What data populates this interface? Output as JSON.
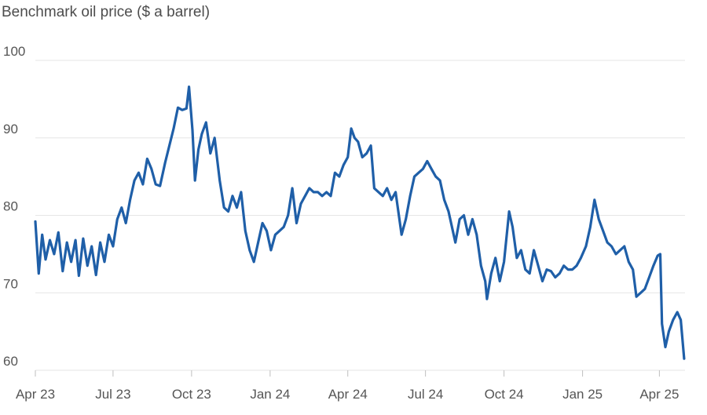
{
  "chart_data": {
    "type": "line",
    "title": "Benchmark oil price ($ a barrel)",
    "xlabel": "",
    "ylabel": "",
    "ylim": [
      60,
      100
    ],
    "xlim": [
      "2023-04-01",
      "2025-05-01"
    ],
    "grid": "horizontal",
    "line_color": "#1f5fa8",
    "y_ticks": [
      {
        "value": 60,
        "label": "60"
      },
      {
        "value": 70,
        "label": "70"
      },
      {
        "value": 80,
        "label": "80"
      },
      {
        "value": 90,
        "label": "90"
      },
      {
        "value": 100,
        "label": "100"
      }
    ],
    "x_ticks": [
      {
        "date": "2023-04-01",
        "label": "Apr 23"
      },
      {
        "date": "2023-07-01",
        "label": "Jul 23"
      },
      {
        "date": "2023-10-01",
        "label": "Oct 23"
      },
      {
        "date": "2024-01-01",
        "label": "Jan 24"
      },
      {
        "date": "2024-04-01",
        "label": "Apr 24"
      },
      {
        "date": "2024-07-01",
        "label": "Jul 24"
      },
      {
        "date": "2024-10-01",
        "label": "Oct 24"
      },
      {
        "date": "2025-01-01",
        "label": "Jan 25"
      },
      {
        "date": "2025-04-01",
        "label": "Apr 25"
      }
    ],
    "series": [
      {
        "points": [
          [
            "2023-04-01",
            79.2
          ],
          [
            "2023-04-05",
            72.5
          ],
          [
            "2023-04-09",
            77.5
          ],
          [
            "2023-04-13",
            74.3
          ],
          [
            "2023-04-18",
            76.8
          ],
          [
            "2023-04-23",
            75.0
          ],
          [
            "2023-04-28",
            77.8
          ],
          [
            "2023-05-03",
            72.8
          ],
          [
            "2023-05-08",
            76.5
          ],
          [
            "2023-05-13",
            74.0
          ],
          [
            "2023-05-18",
            76.8
          ],
          [
            "2023-05-22",
            72.2
          ],
          [
            "2023-05-27",
            77.0
          ],
          [
            "2023-06-01",
            73.5
          ],
          [
            "2023-06-06",
            76.0
          ],
          [
            "2023-06-11",
            72.3
          ],
          [
            "2023-06-16",
            76.5
          ],
          [
            "2023-06-21",
            74.0
          ],
          [
            "2023-06-26",
            77.5
          ],
          [
            "2023-07-01",
            76.0
          ],
          [
            "2023-07-06",
            79.5
          ],
          [
            "2023-07-11",
            81.0
          ],
          [
            "2023-07-16",
            79.0
          ],
          [
            "2023-07-21",
            82.0
          ],
          [
            "2023-07-26",
            84.5
          ],
          [
            "2023-07-31",
            85.5
          ],
          [
            "2023-08-05",
            84.0
          ],
          [
            "2023-08-10",
            87.3
          ],
          [
            "2023-08-15",
            86.0
          ],
          [
            "2023-08-20",
            84.0
          ],
          [
            "2023-08-25",
            83.8
          ],
          [
            "2023-08-31",
            86.8
          ],
          [
            "2023-09-05",
            89.0
          ],
          [
            "2023-09-10",
            91.2
          ],
          [
            "2023-09-15",
            93.9
          ],
          [
            "2023-09-20",
            93.6
          ],
          [
            "2023-09-25",
            93.8
          ],
          [
            "2023-09-28",
            96.6
          ],
          [
            "2023-10-02",
            91.0
          ],
          [
            "2023-10-05",
            84.5
          ],
          [
            "2023-10-09",
            88.5
          ],
          [
            "2023-10-13",
            90.5
          ],
          [
            "2023-10-18",
            92.0
          ],
          [
            "2023-10-23",
            88.0
          ],
          [
            "2023-10-28",
            90.0
          ],
          [
            "2023-11-03",
            84.5
          ],
          [
            "2023-11-08",
            81.0
          ],
          [
            "2023-11-13",
            80.5
          ],
          [
            "2023-11-18",
            82.5
          ],
          [
            "2023-11-23",
            81.0
          ],
          [
            "2023-11-28",
            83.0
          ],
          [
            "2023-12-03",
            78.0
          ],
          [
            "2023-12-08",
            75.5
          ],
          [
            "2023-12-13",
            74.0
          ],
          [
            "2023-12-18",
            76.5
          ],
          [
            "2023-12-23",
            79.0
          ],
          [
            "2023-12-28",
            78.0
          ],
          [
            "2024-01-02",
            75.5
          ],
          [
            "2024-01-07",
            77.5
          ],
          [
            "2024-01-12",
            78.0
          ],
          [
            "2024-01-17",
            78.5
          ],
          [
            "2024-01-22",
            80.0
          ],
          [
            "2024-01-27",
            83.5
          ],
          [
            "2024-02-01",
            79.0
          ],
          [
            "2024-02-06",
            81.5
          ],
          [
            "2024-02-11",
            82.5
          ],
          [
            "2024-02-16",
            83.5
          ],
          [
            "2024-02-21",
            83.0
          ],
          [
            "2024-02-26",
            83.0
          ],
          [
            "2024-03-02",
            82.5
          ],
          [
            "2024-03-07",
            83.0
          ],
          [
            "2024-03-12",
            82.5
          ],
          [
            "2024-03-17",
            85.5
          ],
          [
            "2024-03-22",
            85.0
          ],
          [
            "2024-03-27",
            86.5
          ],
          [
            "2024-04-01",
            87.5
          ],
          [
            "2024-04-05",
            91.2
          ],
          [
            "2024-04-09",
            90.0
          ],
          [
            "2024-04-13",
            89.5
          ],
          [
            "2024-04-18",
            87.5
          ],
          [
            "2024-04-23",
            88.0
          ],
          [
            "2024-04-28",
            89.0
          ],
          [
            "2024-05-02",
            83.5
          ],
          [
            "2024-05-07",
            83.0
          ],
          [
            "2024-05-12",
            82.5
          ],
          [
            "2024-05-17",
            83.5
          ],
          [
            "2024-05-22",
            82.0
          ],
          [
            "2024-05-27",
            83.0
          ],
          [
            "2024-06-03",
            77.5
          ],
          [
            "2024-06-08",
            79.5
          ],
          [
            "2024-06-13",
            82.5
          ],
          [
            "2024-06-18",
            85.0
          ],
          [
            "2024-06-23",
            85.5
          ],
          [
            "2024-06-28",
            86.0
          ],
          [
            "2024-07-03",
            87.0
          ],
          [
            "2024-07-08",
            86.0
          ],
          [
            "2024-07-13",
            85.0
          ],
          [
            "2024-07-18",
            84.5
          ],
          [
            "2024-07-23",
            82.0
          ],
          [
            "2024-07-28",
            80.5
          ],
          [
            "2024-08-05",
            76.5
          ],
          [
            "2024-08-10",
            79.5
          ],
          [
            "2024-08-15",
            80.0
          ],
          [
            "2024-08-20",
            77.5
          ],
          [
            "2024-08-25",
            79.5
          ],
          [
            "2024-08-30",
            77.5
          ],
          [
            "2024-09-04",
            73.5
          ],
          [
            "2024-09-09",
            71.5
          ],
          [
            "2024-09-11",
            69.2
          ],
          [
            "2024-09-16",
            72.5
          ],
          [
            "2024-09-21",
            74.5
          ],
          [
            "2024-09-26",
            71.5
          ],
          [
            "2024-10-01",
            74.0
          ],
          [
            "2024-10-07",
            80.5
          ],
          [
            "2024-10-11",
            78.5
          ],
          [
            "2024-10-16",
            74.5
          ],
          [
            "2024-10-21",
            75.5
          ],
          [
            "2024-10-26",
            73.0
          ],
          [
            "2024-10-31",
            72.5
          ],
          [
            "2024-11-05",
            75.5
          ],
          [
            "2024-11-10",
            73.5
          ],
          [
            "2024-11-15",
            71.5
          ],
          [
            "2024-11-20",
            73.0
          ],
          [
            "2024-11-25",
            72.8
          ],
          [
            "2024-11-30",
            72.0
          ],
          [
            "2024-12-05",
            72.5
          ],
          [
            "2024-12-10",
            73.5
          ],
          [
            "2024-12-15",
            73.0
          ],
          [
            "2024-12-20",
            73.0
          ],
          [
            "2024-12-25",
            73.5
          ],
          [
            "2024-12-30",
            74.5
          ],
          [
            "2025-01-05",
            76.0
          ],
          [
            "2025-01-10",
            78.5
          ],
          [
            "2025-01-15",
            82.0
          ],
          [
            "2025-01-20",
            79.5
          ],
          [
            "2025-01-25",
            78.0
          ],
          [
            "2025-01-30",
            76.5
          ],
          [
            "2025-02-04",
            76.0
          ],
          [
            "2025-02-09",
            75.0
          ],
          [
            "2025-02-14",
            75.5
          ],
          [
            "2025-02-19",
            76.0
          ],
          [
            "2025-02-24",
            74.0
          ],
          [
            "2025-03-01",
            73.0
          ],
          [
            "2025-03-05",
            69.5
          ],
          [
            "2025-03-10",
            70.0
          ],
          [
            "2025-03-15",
            70.5
          ],
          [
            "2025-03-20",
            72.0
          ],
          [
            "2025-03-25",
            73.5
          ],
          [
            "2025-03-30",
            74.8
          ],
          [
            "2025-04-02",
            75.0
          ],
          [
            "2025-04-04",
            66.0
          ],
          [
            "2025-04-08",
            63.0
          ],
          [
            "2025-04-12",
            65.0
          ],
          [
            "2025-04-17",
            66.5
          ],
          [
            "2025-04-22",
            67.5
          ],
          [
            "2025-04-26",
            66.5
          ],
          [
            "2025-04-30",
            61.5
          ]
        ]
      }
    ]
  }
}
